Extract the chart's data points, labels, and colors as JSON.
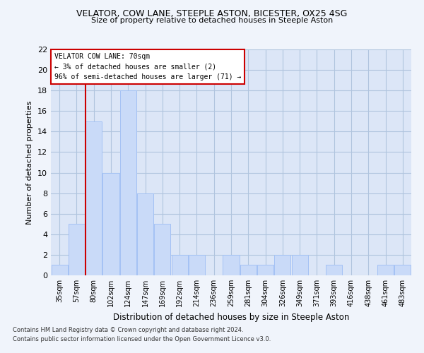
{
  "title": "VELATOR, COW LANE, STEEPLE ASTON, BICESTER, OX25 4SG",
  "subtitle": "Size of property relative to detached houses in Steeple Aston",
  "xlabel": "Distribution of detached houses by size in Steeple Aston",
  "ylabel": "Number of detached properties",
  "categories": [
    "35sqm",
    "57sqm",
    "80sqm",
    "102sqm",
    "124sqm",
    "147sqm",
    "169sqm",
    "192sqm",
    "214sqm",
    "236sqm",
    "259sqm",
    "281sqm",
    "304sqm",
    "326sqm",
    "349sqm",
    "371sqm",
    "393sqm",
    "416sqm",
    "438sqm",
    "461sqm",
    "483sqm"
  ],
  "values": [
    1,
    5,
    15,
    10,
    18,
    8,
    5,
    2,
    2,
    0,
    2,
    1,
    1,
    2,
    2,
    0,
    1,
    0,
    0,
    1,
    1
  ],
  "bar_color": "#c9daf8",
  "bar_edge_color": "#a4c2f4",
  "grid_color": "#b0c4de",
  "background_color": "#dce6f7",
  "fig_background_color": "#f0f4fb",
  "ylim": [
    0,
    22
  ],
  "yticks": [
    0,
    2,
    4,
    6,
    8,
    10,
    12,
    14,
    16,
    18,
    20,
    22
  ],
  "vline_color": "#cc0000",
  "annotation_text": "VELATOR COW LANE: 70sqm\n← 3% of detached houses are smaller (2)\n96% of semi-detached houses are larger (71) →",
  "annotation_box_color": "#ffffff",
  "annotation_box_edge": "#cc0000",
  "footer_line1": "Contains HM Land Registry data © Crown copyright and database right 2024.",
  "footer_line2": "Contains public sector information licensed under the Open Government Licence v3.0."
}
